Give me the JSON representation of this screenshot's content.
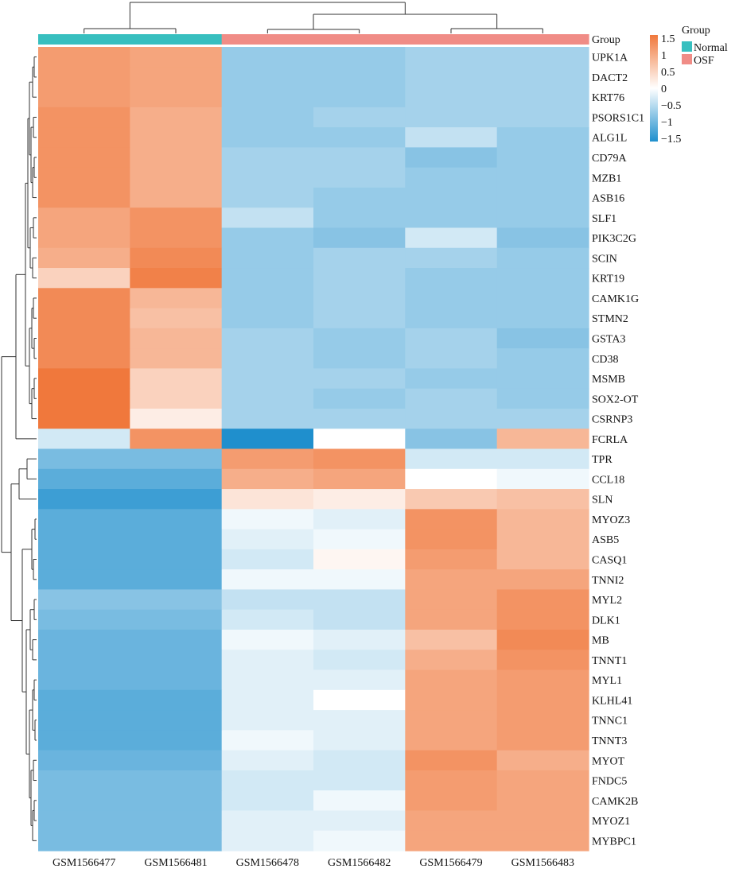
{
  "chart_data": {
    "type": "heatmap",
    "columns": [
      "GSM1566477",
      "GSM1566481",
      "GSM1566478",
      "GSM1566482",
      "GSM1566479",
      "GSM1566483"
    ],
    "column_groups": [
      "Normal",
      "Normal",
      "OSF",
      "OSF",
      "OSF",
      "OSF"
    ],
    "rows": [
      "UPK1A",
      "DACT2",
      "KRT76",
      "PSORS1C1",
      "ALG1L",
      "CD79A",
      "MZB1",
      "ASB16",
      "SLF1",
      "PIK3C2G",
      "SCIN",
      "KRT19",
      "CAMK1G",
      "STMN2",
      "GSTA3",
      "CD38",
      "MSMB",
      "SOX2-OT",
      "CSRNP3",
      "FCRLA",
      "TPR",
      "CCL18",
      "SLN",
      "MYOZ3",
      "ASB5",
      "CASQ1",
      "TNNI2",
      "MYL2",
      "DLK1",
      "MB",
      "TNNT1",
      "MYL1",
      "KLHL41",
      "TNNC1",
      "TNNT3",
      "MYOT",
      "FNDC5",
      "CAMK2B",
      "MYOZ1",
      "MYBPC1"
    ],
    "values": [
      [
        1.1,
        1.0,
        -0.7,
        -0.7,
        -0.6,
        -0.6
      ],
      [
        1.1,
        1.0,
        -0.7,
        -0.7,
        -0.6,
        -0.6
      ],
      [
        1.1,
        1.0,
        -0.7,
        -0.7,
        -0.6,
        -0.6
      ],
      [
        1.2,
        0.9,
        -0.7,
        -0.6,
        -0.6,
        -0.6
      ],
      [
        1.2,
        0.9,
        -0.7,
        -0.7,
        -0.4,
        -0.7
      ],
      [
        1.2,
        0.9,
        -0.6,
        -0.6,
        -0.8,
        -0.7
      ],
      [
        1.2,
        0.9,
        -0.6,
        -0.6,
        -0.7,
        -0.7
      ],
      [
        1.2,
        0.9,
        -0.6,
        -0.7,
        -0.7,
        -0.7
      ],
      [
        1.0,
        1.2,
        -0.4,
        -0.7,
        -0.7,
        -0.7
      ],
      [
        1.0,
        1.2,
        -0.7,
        -0.8,
        -0.3,
        -0.8
      ],
      [
        0.9,
        1.3,
        -0.7,
        -0.6,
        -0.6,
        -0.7
      ],
      [
        0.5,
        1.4,
        -0.7,
        -0.6,
        -0.7,
        -0.7
      ],
      [
        1.3,
        0.8,
        -0.7,
        -0.6,
        -0.7,
        -0.7
      ],
      [
        1.3,
        0.7,
        -0.7,
        -0.6,
        -0.7,
        -0.7
      ],
      [
        1.3,
        0.8,
        -0.6,
        -0.7,
        -0.6,
        -0.8
      ],
      [
        1.3,
        0.8,
        -0.6,
        -0.7,
        -0.6,
        -0.7
      ],
      [
        1.5,
        0.5,
        -0.6,
        -0.6,
        -0.7,
        -0.7
      ],
      [
        1.5,
        0.5,
        -0.6,
        -0.7,
        -0.6,
        -0.7
      ],
      [
        1.6,
        0.2,
        -0.6,
        -0.6,
        -0.6,
        -0.6
      ],
      [
        -0.3,
        1.2,
        -1.5,
        0.0,
        -0.8,
        0.8
      ],
      [
        -0.9,
        -0.9,
        1.1,
        1.2,
        -0.3,
        -0.3
      ],
      [
        -1.1,
        -1.1,
        0.9,
        1.0,
        0.0,
        -0.1
      ],
      [
        -1.3,
        -1.3,
        0.3,
        0.2,
        0.6,
        0.7
      ],
      [
        -1.1,
        -1.1,
        -0.1,
        -0.2,
        1.2,
        0.8
      ],
      [
        -1.1,
        -1.1,
        -0.2,
        -0.1,
        1.2,
        0.8
      ],
      [
        -1.1,
        -1.1,
        -0.3,
        0.1,
        1.1,
        0.8
      ],
      [
        -1.1,
        -1.1,
        -0.1,
        -0.1,
        1.0,
        1.0
      ],
      [
        -0.8,
        -0.8,
        -0.4,
        -0.4,
        1.0,
        1.2
      ],
      [
        -0.9,
        -0.9,
        -0.3,
        -0.4,
        1.0,
        1.2
      ],
      [
        -1.0,
        -1.0,
        -0.1,
        -0.2,
        0.7,
        1.3
      ],
      [
        -1.0,
        -1.0,
        -0.2,
        -0.3,
        0.9,
        1.2
      ],
      [
        -1.0,
        -1.0,
        -0.2,
        -0.2,
        1.0,
        1.1
      ],
      [
        -1.1,
        -1.1,
        -0.2,
        0.0,
        1.0,
        1.1
      ],
      [
        -1.1,
        -1.1,
        -0.2,
        -0.2,
        1.0,
        1.1
      ],
      [
        -1.1,
        -1.1,
        -0.1,
        -0.2,
        1.0,
        1.1
      ],
      [
        -1.0,
        -1.0,
        -0.2,
        -0.3,
        1.2,
        0.9
      ],
      [
        -0.9,
        -0.9,
        -0.3,
        -0.3,
        1.1,
        1.0
      ],
      [
        -0.9,
        -0.9,
        -0.3,
        -0.1,
        1.1,
        1.0
      ],
      [
        -0.9,
        -0.9,
        -0.2,
        -0.2,
        1.0,
        1.0
      ],
      [
        -0.9,
        -0.9,
        -0.2,
        -0.1,
        1.0,
        1.0
      ]
    ],
    "annotation": {
      "label": "Group",
      "legend_title": "Group",
      "levels": [
        {
          "name": "Normal",
          "color": "#37bfbf"
        },
        {
          "name": "OSF",
          "color": "#f08c86"
        }
      ]
    },
    "color_scale": {
      "min": -1.5,
      "max": 1.5,
      "low_color": "#1f8fcd",
      "mid_color": "#ffffff",
      "high_color": "#f0783c",
      "ticks": [
        -1.5,
        -1,
        -0.5,
        0,
        0.5,
        1,
        1.5
      ],
      "tick_labels": [
        "−1.5",
        "−1",
        "−0.5",
        "0",
        "0.5",
        "1",
        "1.5"
      ]
    },
    "column_dendrogram": true,
    "row_dendrogram": true,
    "legend_position": "top-right"
  }
}
